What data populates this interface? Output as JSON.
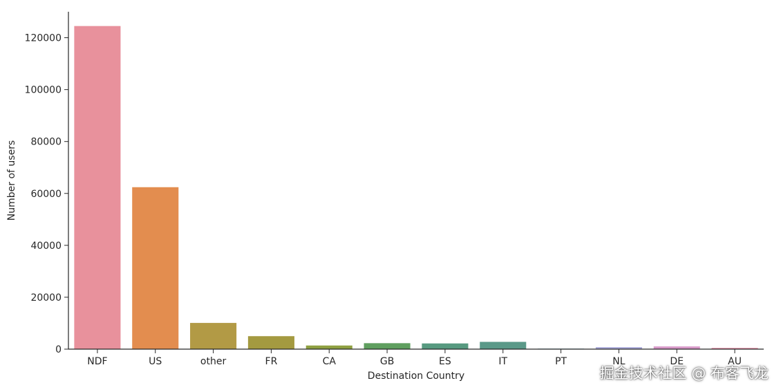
{
  "chart_data": {
    "type": "bar",
    "categories": [
      "NDF",
      "US",
      "other",
      "FR",
      "CA",
      "GB",
      "ES",
      "IT",
      "PT",
      "NL",
      "DE",
      "AU"
    ],
    "values": [
      124500,
      62400,
      10100,
      5000,
      1400,
      2300,
      2200,
      2800,
      200,
      750,
      1050,
      500
    ],
    "colors": [
      "#e8919c",
      "#e38d4f",
      "#b29a45",
      "#a49a40",
      "#8fa041",
      "#5f9f5f",
      "#579a80",
      "#5a9988",
      "#7faac0",
      "#a9a8d8",
      "#d89ac9",
      "#e79ab0"
    ],
    "xlabel": "Destination Country",
    "ylabel": "Number of users",
    "ylim": [
      0,
      130000
    ],
    "yticks": [
      0,
      20000,
      40000,
      60000,
      80000,
      100000,
      120000
    ],
    "grid": false,
    "legend": "none"
  },
  "watermark": "掘金技术社区 @ 布客飞龙"
}
